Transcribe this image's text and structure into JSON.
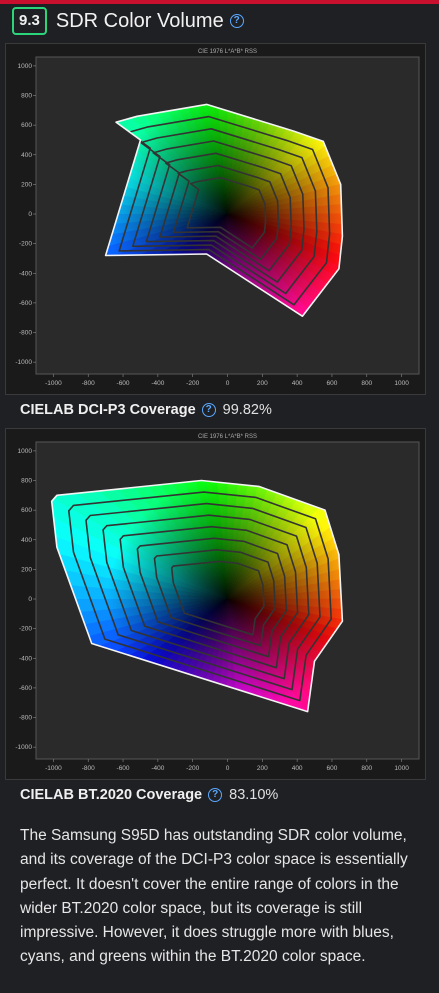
{
  "header": {
    "number": "9.3",
    "title": "SDR Color Volume",
    "info_icon": "question-circle-icon"
  },
  "charts": [
    {
      "label": "CIELAB DCI-P3 Coverage",
      "value": "99.82%"
    },
    {
      "label": "CIELAB BT.2020 Coverage",
      "value": "83.10%"
    }
  ],
  "chart_data": [
    {
      "type": "area",
      "title": "CIE 1976 L*A*B* RSS",
      "x_ticks": [
        "-1000",
        "-800",
        "-600",
        "-400",
        "-200",
        "0",
        "200",
        "400",
        "600",
        "800",
        "1000"
      ],
      "y_ticks": [
        "1000",
        "800",
        "600",
        "400",
        "200",
        "0",
        "-200",
        "-400",
        "-600",
        "-800",
        "-1000"
      ],
      "xlim": [
        -1100,
        1100
      ],
      "ylim": [
        -1080,
        1060
      ],
      "grid": false,
      "outline": [
        [
          -640,
          620
        ],
        [
          -520,
          660
        ],
        [
          -120,
          740
        ],
        [
          380,
          560
        ],
        [
          550,
          490
        ],
        [
          650,
          200
        ],
        [
          660,
          -150
        ],
        [
          640,
          -370
        ],
        [
          430,
          -690
        ],
        [
          -120,
          -270
        ],
        [
          -700,
          -280
        ],
        [
          -500,
          500
        ]
      ],
      "rings": 6
    },
    {
      "type": "area",
      "title": "CIE 1976 L*A*B* RSS",
      "x_ticks": [
        "-1000",
        "-800",
        "-600",
        "-400",
        "-200",
        "0",
        "200",
        "400",
        "600",
        "800",
        "1000"
      ],
      "y_ticks": [
        "1000",
        "800",
        "600",
        "400",
        "200",
        "0",
        "-200",
        "-400",
        "-600",
        "-800",
        "-1000"
      ],
      "xlim": [
        -1100,
        1100
      ],
      "ylim": [
        -1080,
        1060
      ],
      "grid": false,
      "outline": [
        [
          -1010,
          660
        ],
        [
          -980,
          700
        ],
        [
          -150,
          800
        ],
        [
          180,
          760
        ],
        [
          560,
          600
        ],
        [
          640,
          300
        ],
        [
          660,
          -150
        ],
        [
          500,
          -420
        ],
        [
          460,
          -760
        ],
        [
          -780,
          -300
        ],
        [
          -980,
          350
        ]
      ],
      "rings": 7
    }
  ],
  "description": "The Samsung S95D has outstanding SDR color volume, and its coverage of the DCI-P3 color space is essentially perfect. It doesn't cover the entire range of colors in the wider BT.2020 color space, but its coverage is still impressive. However, it does struggle more with blues, cyans, and greens within the BT.2020 color space."
}
